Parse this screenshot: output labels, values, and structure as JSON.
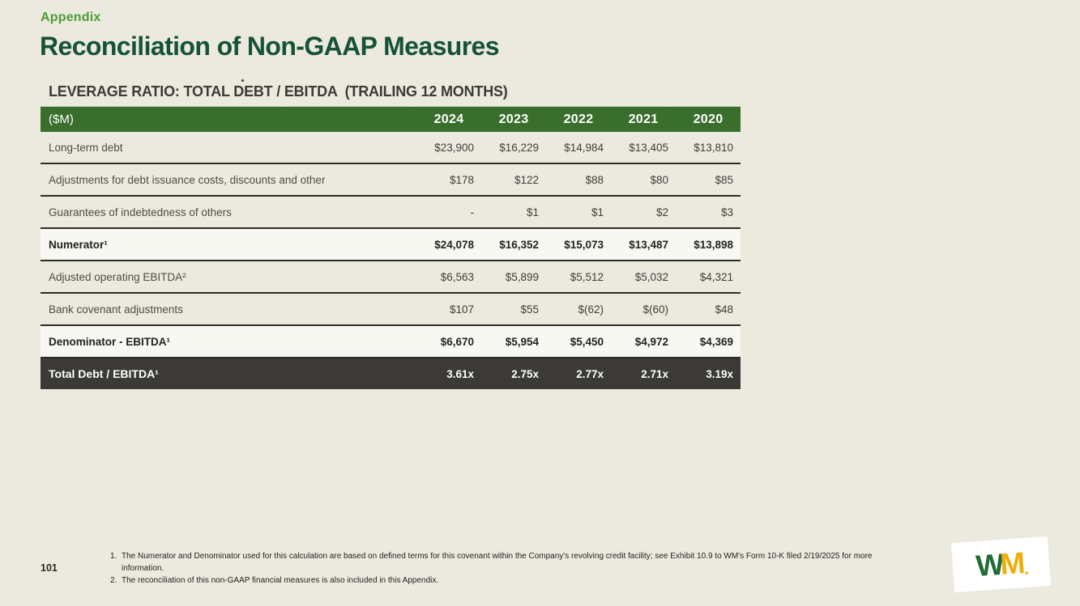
{
  "slide": {
    "eyebrow": "Appendix",
    "title": "Reconciliation of Non-GAAP Measures",
    "section_heading": "LEVERAGE RATIO: TOTAL DEBT / EBITDA  (TRAILING 12 MONTHS)",
    "page_number": "101"
  },
  "colors": {
    "background": "#ECEADF",
    "eyebrow_green": "#4D9C39",
    "title_green": "#165238",
    "header_green": "#3A6E2D",
    "dark_row": "#3B3A36",
    "logo_green": "#206B36",
    "logo_gold": "#F0AD0A"
  },
  "table": {
    "unit_label": "($M)",
    "years": [
      "2024",
      "2023",
      "2022",
      "2021",
      "2020"
    ],
    "rows": [
      {
        "label": "Long-term debt",
        "values": [
          "$23,900",
          "$16,229",
          "$14,984",
          "$13,405",
          "$13,810"
        ]
      },
      {
        "label": "Adjustments for debt issuance costs, discounts and other",
        "values": [
          "$178",
          "$122",
          "$88",
          "$80",
          "$85"
        ]
      },
      {
        "label": "Guarantees of indebtedness of others",
        "values": [
          "-",
          "$1",
          "$1",
          "$2",
          "$3"
        ]
      },
      {
        "label": "Numerator¹",
        "values": [
          "$24,078",
          "$16,352",
          "$15,073",
          "$13,487",
          "$13,898"
        ]
      },
      {
        "label": "Adjusted operating EBITDA²",
        "values": [
          "$6,563",
          "$5,899",
          "$5,512",
          "$5,032",
          "$4,321"
        ]
      },
      {
        "label": "Bank covenant adjustments",
        "values": [
          "$107",
          "$55",
          "$(62)",
          "$(60)",
          "$48"
        ]
      },
      {
        "label": "Denominator - EBITDA¹",
        "values": [
          "$6,670",
          "$5,954",
          "$5,450",
          "$4,972",
          "$4,369"
        ]
      }
    ],
    "total_row": {
      "label": "Total Debt / EBITDA¹",
      "values": [
        "3.61x",
        "2.75x",
        "2.77x",
        "2.71x",
        "3.19x"
      ]
    }
  },
  "footnotes": [
    {
      "num": "1.",
      "text": "The Numerator and Denominator used for this calculation are based on defined terms for this covenant within the Company's revolving credit facility; see Exhibit 10.9 to WM's Form 10-K filed 2/19/2025 for more information."
    },
    {
      "num": "2.",
      "text": "The reconciliation of this non-GAAP financial measures is also included in this Appendix."
    }
  ],
  "logo": {
    "w": "W",
    "m": "M",
    "dot": "."
  }
}
